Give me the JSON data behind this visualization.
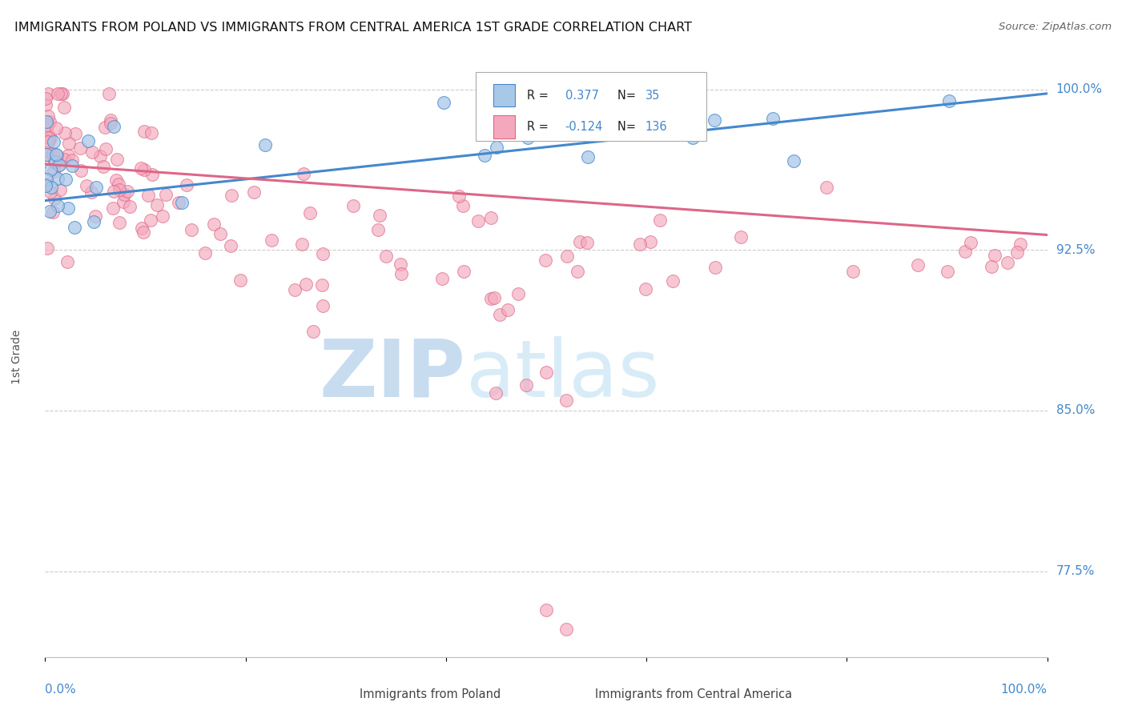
{
  "title": "IMMIGRANTS FROM POLAND VS IMMIGRANTS FROM CENTRAL AMERICA 1ST GRADE CORRELATION CHART",
  "source": "Source: ZipAtlas.com",
  "ylabel": "1st Grade",
  "ytick_labels": [
    "100.0%",
    "92.5%",
    "85.0%",
    "77.5%"
  ],
  "ytick_values": [
    1.0,
    0.925,
    0.85,
    0.775
  ],
  "xlim": [
    0.0,
    1.0
  ],
  "ylim": [
    0.735,
    1.015
  ],
  "blue_R": 0.377,
  "blue_N": 35,
  "pink_R": -0.124,
  "pink_N": 136,
  "blue_color": "#A8C8E8",
  "pink_color": "#F4A8BC",
  "blue_line_color": "#4488CC",
  "pink_line_color": "#DD6688",
  "legend_label_blue": "Immigrants from Poland",
  "legend_label_pink": "Immigrants from Central America",
  "blue_trend_x0": 0.0,
  "blue_trend_y0": 0.948,
  "blue_trend_x1": 1.0,
  "blue_trend_y1": 0.998,
  "pink_trend_x0": 0.0,
  "pink_trend_y0": 0.965,
  "pink_trend_x1": 1.0,
  "pink_trend_y1": 0.932
}
